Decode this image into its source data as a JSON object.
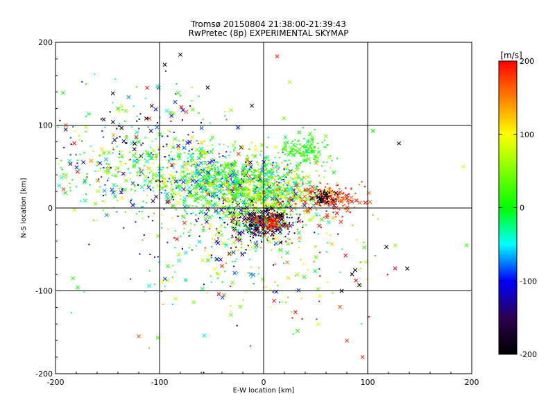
{
  "chart_data": {
    "type": "scatter",
    "title": "Tromsø 20150804 21:38:00-21:39:43",
    "subtitle": "RwPretec (8p) EXPERIMENTAL SKYMAP",
    "xlabel": "E-W location [km]",
    "ylabel": "N-S location [km]",
    "xlim": [
      -200,
      200
    ],
    "ylim": [
      -200,
      200
    ],
    "xticks": [
      "-200",
      "-100",
      "0",
      "100",
      "200"
    ],
    "yticks": [
      "-200",
      "-100",
      "0",
      "100",
      "200"
    ],
    "grid_major": [
      -100,
      0,
      100
    ],
    "markers": [
      "x",
      "dot"
    ],
    "colorbar": {
      "label": "[m/s]",
      "range": [
        -200,
        200
      ],
      "ticks": [
        "200",
        "100",
        "0",
        "-100",
        "-200"
      ],
      "colors": [
        "#ff0000",
        "#ffff00",
        "#00ff00",
        "#00ffff",
        "#0000ff",
        "#2d0050",
        "#000000"
      ],
      "stops": [
        200,
        100,
        0,
        -50,
        -100,
        -150,
        -200
      ]
    },
    "clusters": [
      {
        "x": -100,
        "y": 45,
        "sx": 55,
        "sy": 25,
        "v": 0,
        "sv": 90,
        "n": 550
      },
      {
        "x": -40,
        "y": 35,
        "sx": 28,
        "sy": 18,
        "v": 10,
        "sv": 70,
        "n": 500
      },
      {
        "x": 0,
        "y": 30,
        "sx": 25,
        "sy": 16,
        "v": 10,
        "sv": 60,
        "n": 350
      },
      {
        "x": 10,
        "y": 10,
        "sx": 22,
        "sy": 14,
        "v": 60,
        "sv": 70,
        "n": 300
      },
      {
        "x": 0,
        "y": -18,
        "sx": 14,
        "sy": 10,
        "v": -170,
        "sv": 30,
        "n": 320
      },
      {
        "x": 5,
        "y": -18,
        "sx": 8,
        "sy": 5,
        "v": 185,
        "sv": 12,
        "n": 110
      },
      {
        "x": 65,
        "y": 12,
        "sx": 14,
        "sy": 10,
        "v": 180,
        "sv": 25,
        "n": 160
      },
      {
        "x": 58,
        "y": 12,
        "sx": 5,
        "sy": 6,
        "v": -190,
        "sv": 10,
        "n": 40
      },
      {
        "x": 42,
        "y": 70,
        "sx": 14,
        "sy": 10,
        "v": 10,
        "sv": 20,
        "n": 110
      },
      {
        "x": -15,
        "y": -15,
        "sx": 25,
        "sy": 20,
        "v": 0,
        "sv": 100,
        "n": 180
      },
      {
        "x": -50,
        "y": -30,
        "sx": 40,
        "sy": 30,
        "v": 0,
        "sv": 100,
        "n": 120
      },
      {
        "x": 30,
        "y": -60,
        "sx": 40,
        "sy": 50,
        "v": 80,
        "sv": 110,
        "n": 140
      },
      {
        "x": -120,
        "y": 110,
        "sx": 40,
        "sy": 25,
        "v": -60,
        "sv": 110,
        "n": 90
      },
      {
        "x": -80,
        "y": -70,
        "sx": 50,
        "sy": 40,
        "v": 0,
        "sv": 100,
        "n": 70
      }
    ],
    "sparse_points": [
      {
        "x": -80,
        "y": 185,
        "v": -200
      },
      {
        "x": 13,
        "y": 183,
        "v": 190
      },
      {
        "x": -95,
        "y": 173,
        "v": -200
      },
      {
        "x": 25,
        "y": 152,
        "v": 60
      },
      {
        "x": -120,
        "y": -155,
        "v": 170
      },
      {
        "x": 118,
        "y": -47,
        "v": -200
      },
      {
        "x": 138,
        "y": -73,
        "v": -200
      },
      {
        "x": 92,
        "y": -93,
        "v": -200
      },
      {
        "x": 88,
        "y": -75,
        "v": -200
      },
      {
        "x": 85,
        "y": -80,
        "v": -200
      },
      {
        "x": 130,
        "y": 78,
        "v": -200
      },
      {
        "x": 105,
        "y": 93,
        "v": 0
      },
      {
        "x": 195,
        "y": -45,
        "v": 10
      },
      {
        "x": 192,
        "y": 50,
        "v": 110
      },
      {
        "x": -190,
        "y": 100,
        "v": 160
      },
      {
        "x": -182,
        "y": 78,
        "v": 200
      },
      {
        "x": 10,
        "y": -112,
        "v": 190
      },
      {
        "x": 75,
        "y": -100,
        "v": -200
      },
      {
        "x": -40,
        "y": -70,
        "v": 190
      },
      {
        "x": -30,
        "y": -90,
        "v": 40
      },
      {
        "x": -140,
        "y": 120,
        "v": 0
      },
      {
        "x": -110,
        "y": 108,
        "v": 190
      },
      {
        "x": -85,
        "y": 128,
        "v": -90
      },
      {
        "x": 95,
        "y": -180,
        "v": 190
      },
      {
        "x": 80,
        "y": -160,
        "v": 180
      }
    ]
  }
}
